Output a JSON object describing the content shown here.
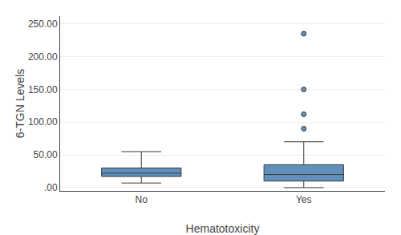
{
  "chart_data": {
    "type": "box",
    "categories": [
      "No",
      "Yes"
    ],
    "xlabel": "Hematotoxicity",
    "ylabel": "6-TGN Levels",
    "boxes": [
      {
        "q1": 17,
        "median": 22,
        "q3": 30,
        "whislo": 7,
        "whishi": 55,
        "fliers": []
      },
      {
        "q1": 10,
        "median": 20,
        "q3": 35,
        "whislo": 0,
        "whishi": 70,
        "fliers": [
          90,
          112,
          150,
          235
        ]
      }
    ],
    "color": "#6090bb",
    "ylim": [
      -5,
      262
    ],
    "yticks": [
      {
        "value": 0,
        "label": ".00"
      },
      {
        "value": 50,
        "label": "50.00"
      },
      {
        "value": 100,
        "label": "100.00"
      },
      {
        "value": 150,
        "label": "150.00"
      },
      {
        "value": 200,
        "label": "200.00"
      },
      {
        "value": 250,
        "label": "250.00"
      }
    ],
    "grid": true
  }
}
